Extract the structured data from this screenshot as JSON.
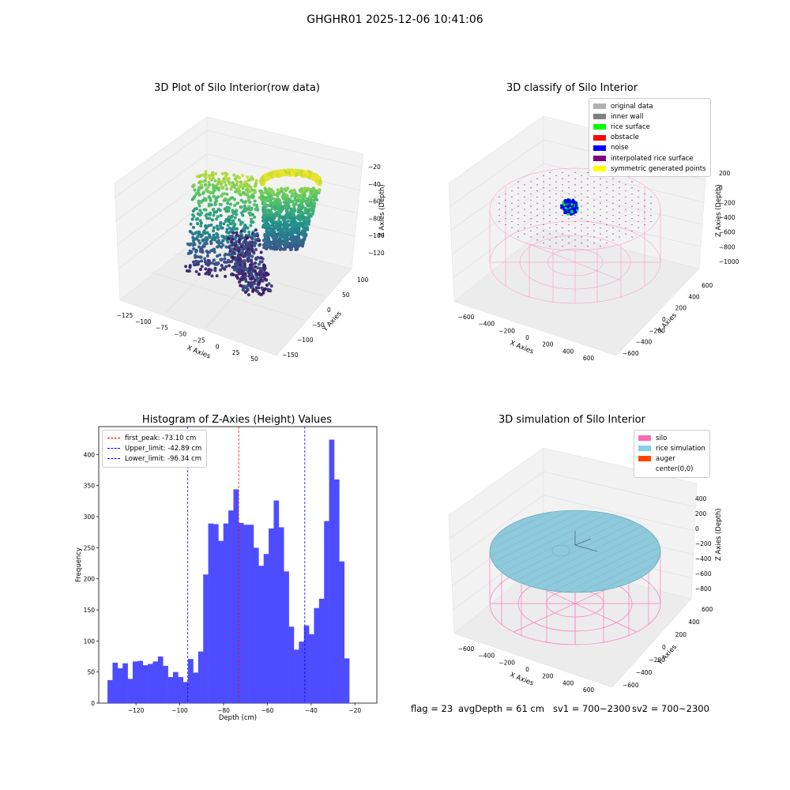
{
  "suptitle": "GHGHR01 2025-12-06 10:41:06",
  "panels": {
    "raw": {
      "title": "3D Plot of Silo Interior(row data)",
      "xlabel": "X Axies",
      "ylabel": "Y Axies",
      "zlabel": "Z Axies (Depth)",
      "xticks": [
        "-125",
        "-100",
        "-75",
        "-50",
        "-25",
        "0",
        "25",
        "50"
      ],
      "yticks": [
        "-150",
        "-100",
        "-50",
        "0",
        "50",
        "100"
      ],
      "zticks": [
        "-20",
        "-40",
        "-60",
        "-80",
        "-100",
        "-120"
      ]
    },
    "classify": {
      "title": "3D classify of Silo Interior",
      "xlabel": "X Axies",
      "ylabel": "Y Axies",
      "zlabel": "Z Axies (Depth)",
      "xticks": [
        "-600",
        "-400",
        "-200",
        "0",
        "200",
        "400",
        "600"
      ],
      "yticks": [
        "-600",
        "-400",
        "-200",
        "0",
        "200",
        "400",
        "600"
      ],
      "zticks": [
        "200",
        "0",
        "-200",
        "-400",
        "-600",
        "-800",
        "-1000"
      ],
      "legend": [
        {
          "label": "original data",
          "color": "#b0b0b0"
        },
        {
          "label": "inner wall",
          "color": "#808080"
        },
        {
          "label": "rice surface",
          "color": "#00ff00"
        },
        {
          "label": "obstacle",
          "color": "#ff0000"
        },
        {
          "label": "noise",
          "color": "#0000ff"
        },
        {
          "label": "interpolated rice surface",
          "color": "#800080"
        },
        {
          "label": "symmetric generated points",
          "color": "#ffff00"
        }
      ]
    },
    "hist": {
      "title": "Histogram of Z-Axies (Height) Values",
      "xlabel": "Depth (cm)",
      "ylabel": "Frequency",
      "legend": [
        {
          "label": "first_peak: -73.10 cm",
          "color": "#ff0000"
        },
        {
          "label": "Upper_limit: -42.89 cm",
          "color": "#0000ff"
        },
        {
          "label": "Lower_limit: -96.34 cm",
          "color": "#0000ff"
        }
      ]
    },
    "sim": {
      "title": "3D simulation of Silo Interior",
      "xlabel": "X Axies",
      "ylabel": "Y Axies",
      "zlabel": "Z Axies (Depth)",
      "xticks": [
        "-600",
        "-400",
        "-200",
        "0",
        "200",
        "400",
        "600"
      ],
      "yticks": [
        "-600",
        "-400",
        "-200",
        "0",
        "200",
        "400",
        "600"
      ],
      "zticks": [
        "400",
        "200",
        "0",
        "-200",
        "-400",
        "-600",
        "-800"
      ],
      "legend": [
        {
          "label": "silo",
          "color": "#ff69b4"
        },
        {
          "label": "rice simulation",
          "color": "#87ceeb"
        },
        {
          "label": "auger",
          "color": "#ff4500"
        },
        {
          "label": "center(0,0)",
          "color": ""
        }
      ]
    }
  },
  "status": {
    "flag": "flag = 23",
    "avg": "avgDepth = 61 cm",
    "sv1": "sv1 = 700~2300",
    "sv2": "sv2 = 700~2300"
  },
  "chart_data": [
    {
      "type": "bar",
      "title": "Histogram of Z-Axies (Height) Values",
      "xlabel": "Depth (cm)",
      "ylabel": "Frequency",
      "bin_start": -133.0,
      "bin_width": 2.3,
      "values": [
        37,
        65,
        56,
        64,
        39,
        67,
        68,
        61,
        63,
        67,
        75,
        60,
        42,
        50,
        42,
        34,
        71,
        49,
        83,
        207,
        289,
        288,
        261,
        289,
        310,
        344,
        290,
        287,
        287,
        250,
        221,
        240,
        281,
        326,
        283,
        212,
        123,
        86,
        99,
        125,
        111,
        153,
        168,
        293,
        424,
        360,
        228,
        72
      ],
      "xlim": [
        -137,
        -10
      ],
      "ylim": [
        0,
        445
      ],
      "xticks": [
        -120,
        -100,
        -80,
        -60,
        -40,
        -20
      ],
      "yticks": [
        0,
        50,
        100,
        150,
        200,
        250,
        300,
        350,
        400
      ],
      "vlines": [
        {
          "name": "first_peak: -73.10 cm",
          "x": -73.1,
          "color": "#ff0000"
        },
        {
          "name": "Upper_limit: -42.89 cm",
          "x": -42.89,
          "color": "#0000ff"
        },
        {
          "name": "Lower_limit: -96.34 cm",
          "x": -96.34,
          "color": "#0000ff"
        }
      ],
      "bar_color": "#4d4dff",
      "legend_position": "upper left"
    }
  ]
}
